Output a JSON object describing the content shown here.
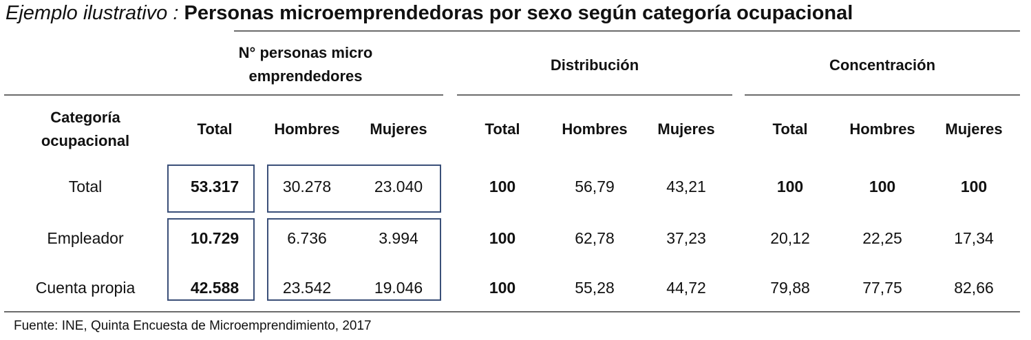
{
  "title": {
    "italic_part": "Ejemplo ilustrativo :",
    "main_part": " Personas microemprendedoras por sexo según categoría ocupacional"
  },
  "groups": {
    "count_l1": "N° personas micro",
    "count_l2": "emprendedores",
    "distribution": "Distribución",
    "concentration": "Concentración"
  },
  "headers": {
    "category_l1": "Categoría",
    "category_l2": "ocupacional",
    "total": "Total",
    "hombres": "Hombres",
    "mujeres": "Mujeres"
  },
  "rows": [
    {
      "label": "Total",
      "n_total": "53.317",
      "n_h": "30.278",
      "n_m": "23.040",
      "d_total": "100",
      "d_h": "56,79",
      "d_m": "43,21",
      "c_total": "100",
      "c_h": "100",
      "c_m": "100"
    },
    {
      "label": "Empleador",
      "n_total": "10.729",
      "n_h": "6.736",
      "n_m": "3.994",
      "d_total": "100",
      "d_h": "62,78",
      "d_m": "37,23",
      "c_total": "20,12",
      "c_h": "22,25",
      "c_m": "17,34"
    },
    {
      "label": "Cuenta propia",
      "n_total": "42.588",
      "n_h": "23.542",
      "n_m": "19.046",
      "d_total": "100",
      "d_h": "55,28",
      "d_m": "44,72",
      "c_total": "79,88",
      "c_h": "77,75",
      "c_m": "82,66"
    }
  ],
  "source": "Fuente: INE, Quinta Encuesta de Microemprendimiento, 2017"
}
